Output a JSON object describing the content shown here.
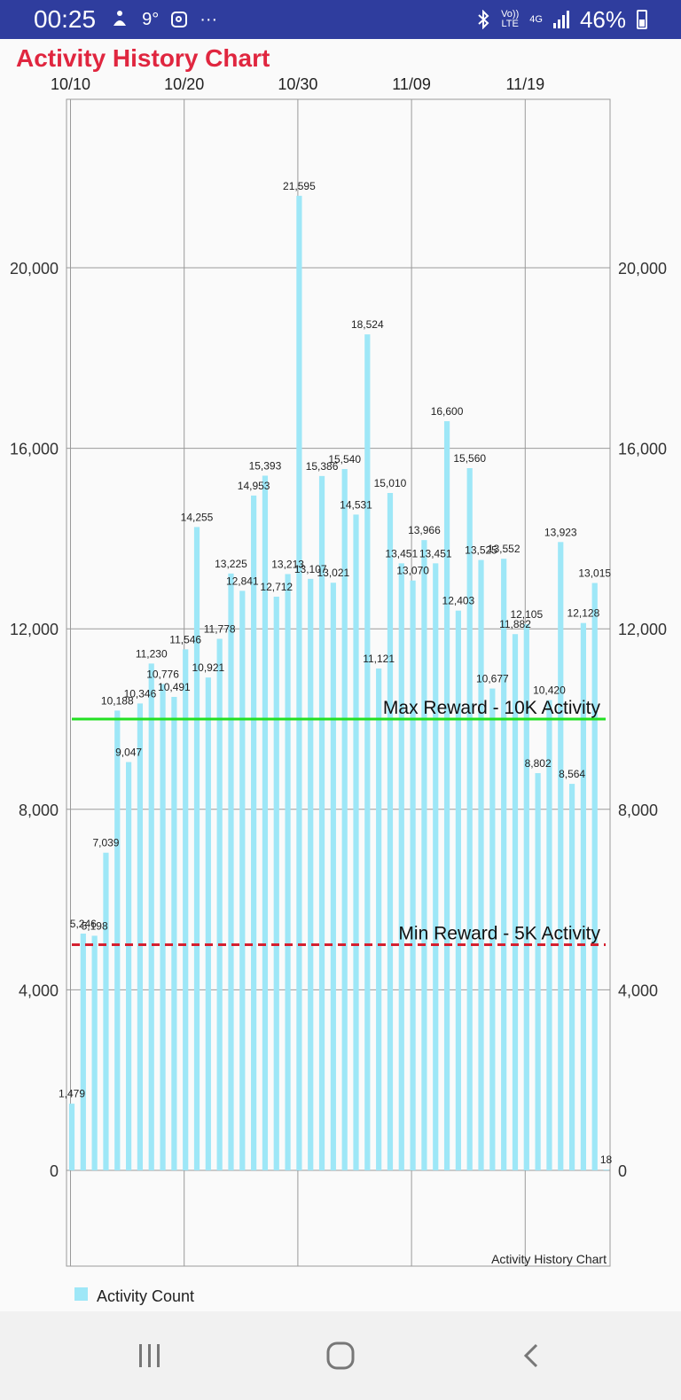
{
  "status_bar": {
    "time": "00:25",
    "notification_icons": [
      "accessibility-icon",
      "weather-icon",
      "instagram-icon",
      "more-icon"
    ],
    "weather_temp": "9°",
    "more": "···",
    "signal_labels": {
      "volte_top": "Vo))",
      "volte_bottom": "LTE",
      "network": "4G"
    },
    "battery": "46%",
    "battery_level": 0.46
  },
  "chart_data": {
    "type": "bar",
    "title": "Activity History Chart",
    "description_label": "Activity History Chart",
    "legend": {
      "label": "Activity Count",
      "position": "bottom-left",
      "color": "#9ee7f7"
    },
    "bar_color": "#9ee7f7",
    "x_tick_labels": [
      "10/10",
      "10/20",
      "10/30",
      "11/09",
      "11/19"
    ],
    "x_tick_indices": [
      0,
      10,
      20,
      30,
      40
    ],
    "y_ticks": [
      0,
      4000,
      8000,
      12000,
      16000,
      20000
    ],
    "y_tick_labels": [
      "0",
      "4,000",
      "8,000",
      "12,000",
      "16,000",
      "20,000"
    ],
    "ylim": [
      -2000,
      24000
    ],
    "grid": true,
    "limit_lines": [
      {
        "label": "Max Reward - 10K Activity",
        "value": 10000,
        "color": "#22e022",
        "style": "solid"
      },
      {
        "label": "Min Reward - 5K Activity",
        "value": 5000,
        "color": "#d42030",
        "style": "dashed"
      }
    ],
    "x": [
      "10/10",
      "10/11",
      "10/12",
      "10/13",
      "10/14",
      "10/15",
      "10/16",
      "10/17",
      "10/18",
      "10/19",
      "10/20",
      "10/21",
      "10/22",
      "10/23",
      "10/24",
      "10/25",
      "10/26",
      "10/27",
      "10/28",
      "10/29",
      "10/30",
      "10/31",
      "11/01",
      "11/02",
      "11/03",
      "11/04",
      "11/05",
      "11/06",
      "11/07",
      "11/08",
      "11/09",
      "11/10",
      "11/11",
      "11/12",
      "11/13",
      "11/14",
      "11/15",
      "11/16",
      "11/17",
      "11/18",
      "11/19",
      "11/20",
      "11/21",
      "11/22",
      "11/23",
      "11/24",
      "11/25",
      "11/26"
    ],
    "values": [
      1479,
      5246,
      5198,
      7039,
      10188,
      9047,
      10346,
      11230,
      10776,
      10491,
      11546,
      14255,
      10921,
      11778,
      13225,
      12841,
      14953,
      15393,
      12712,
      13213,
      21595,
      13107,
      15386,
      13021,
      15540,
      14531,
      18524,
      11121,
      15010,
      13451,
      13070,
      13966,
      13451,
      16600,
      12403,
      15560,
      13525,
      10677,
      13552,
      11882,
      12105,
      8802,
      10420,
      13923,
      8564,
      12128,
      13015,
      18
    ],
    "value_labels": [
      "1,479",
      "5,246",
      "5,198",
      "7,039",
      "10,188",
      "9,047",
      "10,346",
      "11,230",
      "10,776",
      "10,491",
      "11,546",
      "14,255",
      "10,921",
      "11,778",
      "13,225",
      "12,841",
      "14,953",
      "15,393",
      "12,712",
      "13,213",
      "21,595",
      "13,107",
      "15,386",
      "13,021",
      "15,540",
      "14,531",
      "18,524",
      "11,121",
      "15,010",
      "13,451",
      "13,070",
      "13,966",
      "13,451",
      "16,600",
      "12,403",
      "15,560",
      "13,525",
      "10,677",
      "13,552",
      "11,882",
      "12,105",
      "8,802",
      "10,420",
      "13,923",
      "8,564",
      "12,128",
      "13,015",
      "18"
    ]
  },
  "nav_bar": {
    "buttons": [
      {
        "name": "recent-apps-button",
        "icon": "recents-icon"
      },
      {
        "name": "home-button",
        "icon": "home-icon"
      },
      {
        "name": "back-button",
        "icon": "back-icon"
      }
    ]
  }
}
